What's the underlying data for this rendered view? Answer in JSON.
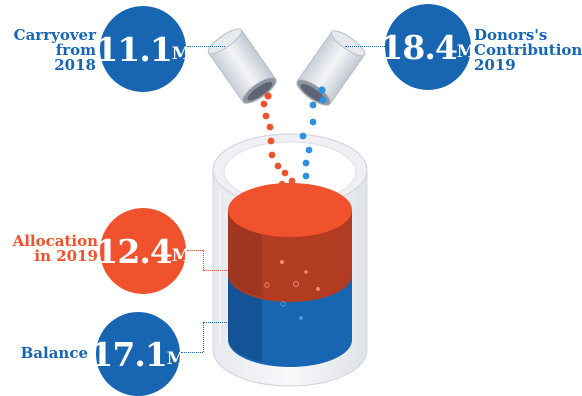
{
  "carryover": {
    "label_line1": "Carryover",
    "label_line2": "from 2018",
    "value": "11.1",
    "unit": "M"
  },
  "donors": {
    "label_line1": "Donors's",
    "label_line2": "Contribution",
    "label_line3": "2019",
    "value": "18.4",
    "unit": "M"
  },
  "allocation": {
    "label_line1": "Allocation",
    "label_line2": "in 2019",
    "value": "12.4",
    "unit": "M"
  },
  "balance": {
    "label": "Balance",
    "value": "17.1",
    "unit": "M"
  },
  "colors": {
    "blue": "#1866b1",
    "orange": "#f0522d",
    "dark_blue": "#13447e",
    "dark_orange": "#b23c22"
  },
  "icons": [
    "cylinder-container-icon",
    "pitcher-left-icon",
    "pitcher-right-icon"
  ]
}
